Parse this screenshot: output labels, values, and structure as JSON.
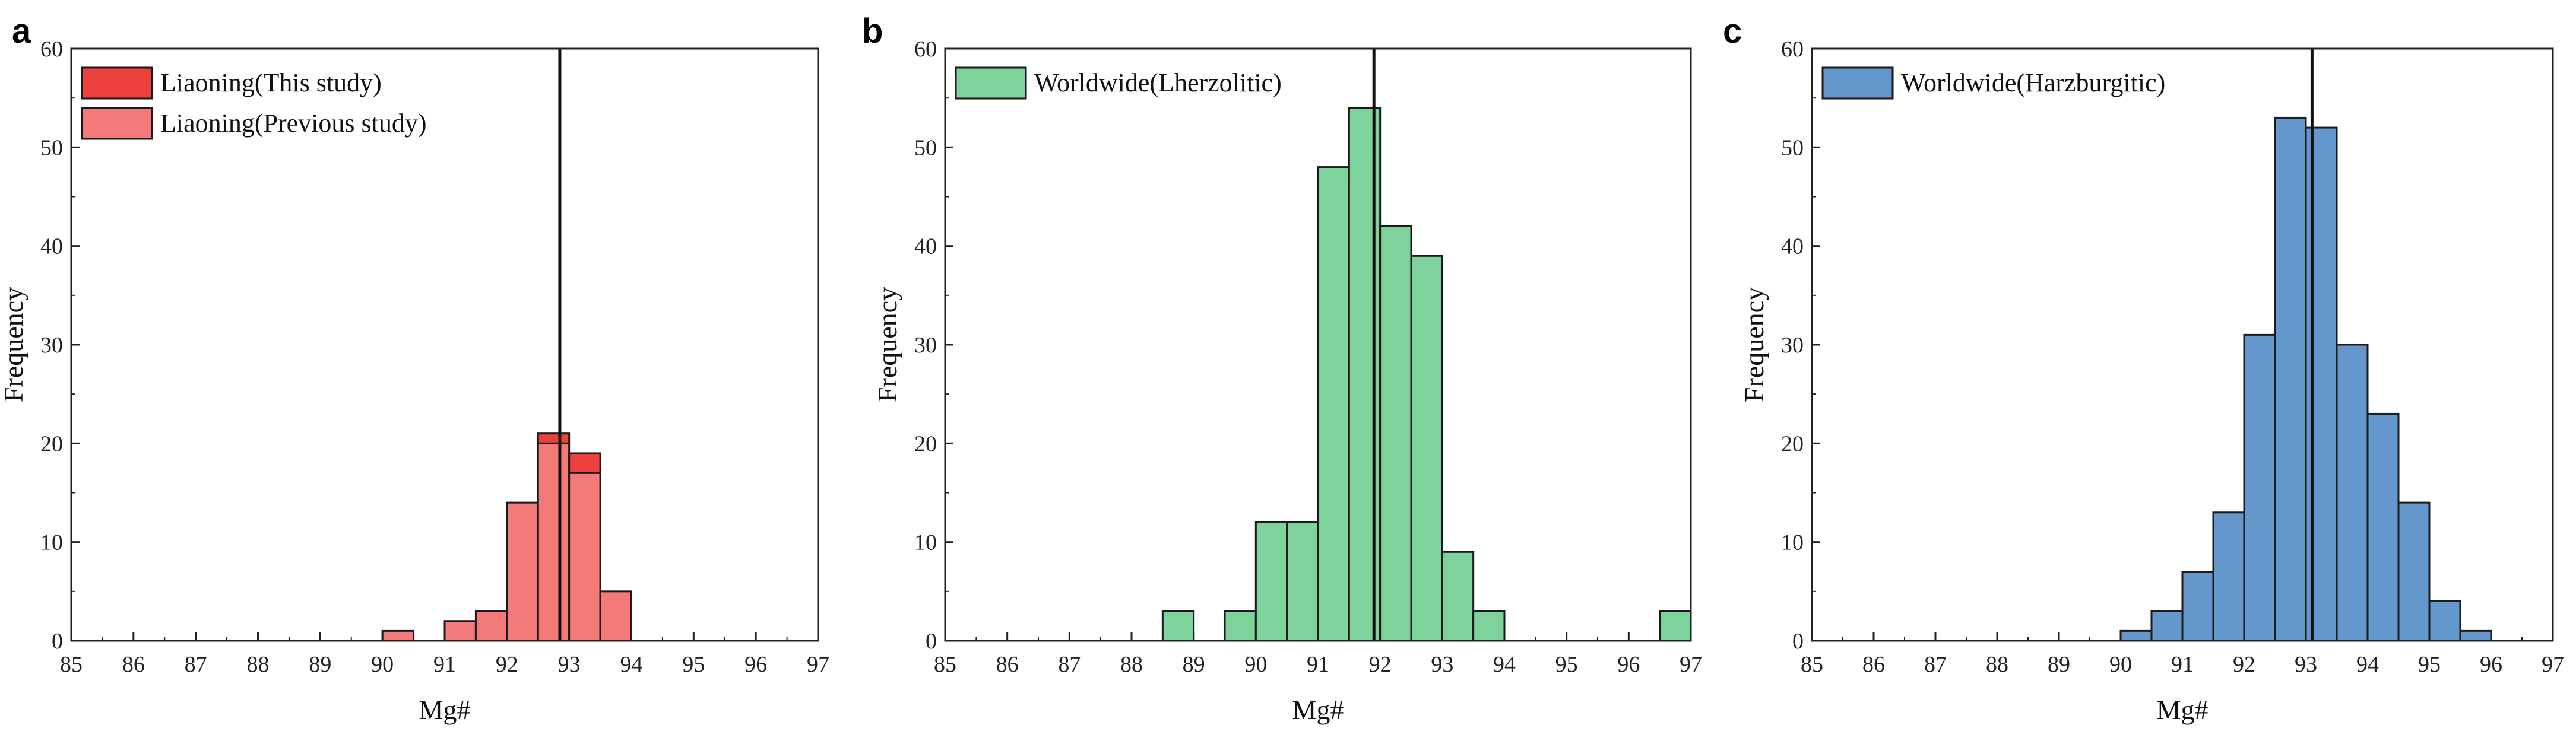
{
  "chart_data": [
    {
      "panel_label": "a",
      "type": "bar",
      "stacked": true,
      "xlabel": "Mg#",
      "ylabel": "Frequency",
      "xlim": [
        85,
        97
      ],
      "ylim": [
        0,
        60
      ],
      "xticks": [
        "85",
        "86",
        "87",
        "88",
        "89",
        "90",
        "91",
        "92",
        "93",
        "94",
        "95",
        "96",
        "97"
      ],
      "yticks": [
        "0",
        "10",
        "20",
        "30",
        "40",
        "50",
        "60"
      ],
      "bin_width": 0.5,
      "series": [
        {
          "name": "Liaoning(This study)",
          "color": "#ee3f3f",
          "bins": [
            {
              "x": 92.5,
              "value": 1
            },
            {
              "x": 93.0,
              "value": 2
            }
          ]
        },
        {
          "name": "Liaoning(Previous study)",
          "color": "#f47a7a",
          "bins": [
            {
              "x": 90.0,
              "value": 1
            },
            {
              "x": 91.0,
              "value": 2
            },
            {
              "x": 91.5,
              "value": 3
            },
            {
              "x": 92.0,
              "value": 14
            },
            {
              "x": 92.5,
              "value": 20
            },
            {
              "x": 93.0,
              "value": 17
            },
            {
              "x": 93.5,
              "value": 5
            }
          ]
        }
      ],
      "reference_line_x": 92.85,
      "legend_position": "top-left"
    },
    {
      "panel_label": "b",
      "type": "bar",
      "stacked": false,
      "xlabel": "Mg#",
      "ylabel": "Frequency",
      "xlim": [
        85,
        97
      ],
      "ylim": [
        0,
        60
      ],
      "xticks": [
        "85",
        "86",
        "87",
        "88",
        "89",
        "90",
        "91",
        "92",
        "93",
        "94",
        "95",
        "96",
        "97"
      ],
      "yticks": [
        "0",
        "10",
        "20",
        "30",
        "40",
        "50",
        "60"
      ],
      "bin_width": 0.5,
      "series": [
        {
          "name": "Worldwide(Lherzolitic)",
          "color": "#7dd39b",
          "bins": [
            {
              "x": 88.5,
              "value": 3
            },
            {
              "x": 89.5,
              "value": 3
            },
            {
              "x": 90.0,
              "value": 12
            },
            {
              "x": 90.5,
              "value": 12
            },
            {
              "x": 91.0,
              "value": 48
            },
            {
              "x": 91.5,
              "value": 54
            },
            {
              "x": 92.0,
              "value": 42
            },
            {
              "x": 92.5,
              "value": 39
            },
            {
              "x": 93.0,
              "value": 9
            },
            {
              "x": 93.5,
              "value": 3
            },
            {
              "x": 96.5,
              "value": 3
            }
          ]
        }
      ],
      "reference_line_x": 91.9,
      "legend_position": "top-left"
    },
    {
      "panel_label": "c",
      "type": "bar",
      "stacked": false,
      "xlabel": "Mg#",
      "ylabel": "Frequency",
      "xlim": [
        85,
        97
      ],
      "ylim": [
        0,
        60
      ],
      "xticks": [
        "85",
        "86",
        "87",
        "88",
        "89",
        "90",
        "91",
        "92",
        "93",
        "94",
        "95",
        "96",
        "97"
      ],
      "yticks": [
        "0",
        "10",
        "20",
        "30",
        "40",
        "50",
        "60"
      ],
      "bin_width": 0.5,
      "series": [
        {
          "name": "Worldwide(Harzburgitic)",
          "color": "#6497cb",
          "bins": [
            {
              "x": 90.0,
              "value": 1
            },
            {
              "x": 90.5,
              "value": 3
            },
            {
              "x": 91.0,
              "value": 7
            },
            {
              "x": 91.5,
              "value": 13
            },
            {
              "x": 92.0,
              "value": 31
            },
            {
              "x": 92.5,
              "value": 53
            },
            {
              "x": 93.0,
              "value": 52
            },
            {
              "x": 93.5,
              "value": 30
            },
            {
              "x": 94.0,
              "value": 23
            },
            {
              "x": 94.5,
              "value": 14
            },
            {
              "x": 95.0,
              "value": 4
            },
            {
              "x": 95.5,
              "value": 1
            }
          ]
        }
      ],
      "reference_line_x": 93.1,
      "legend_position": "top-left"
    }
  ]
}
